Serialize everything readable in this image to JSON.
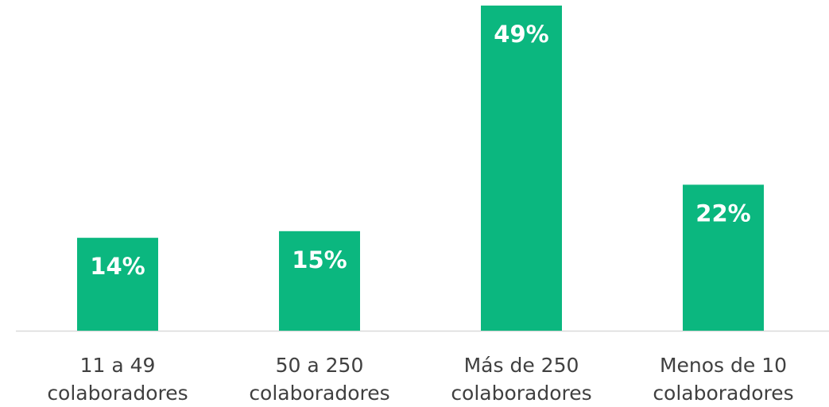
{
  "chart_data": {
    "type": "bar",
    "categories": [
      "11 a 49 colaboradores",
      "50 a 250 colaboradores",
      "Más de 250 colaboradores",
      "Menos de 10 colaboradores"
    ],
    "values": [
      14,
      15,
      49,
      22
    ],
    "value_labels": [
      "14%",
      "15%",
      "49%",
      "22%"
    ],
    "color": "#0bb77f"
  }
}
